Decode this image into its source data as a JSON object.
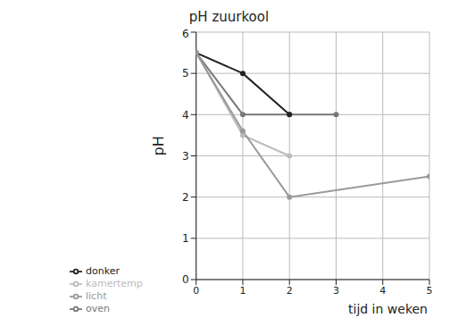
{
  "chart_data": {
    "type": "line",
    "title": "pH zuurkool",
    "x_label": "tijd in weken",
    "y_label": "pH",
    "xlim": [
      0,
      5
    ],
    "xticks": [
      0,
      1,
      2,
      3,
      4,
      5
    ],
    "ylim": [
      0,
      6
    ],
    "yticks": [
      0,
      1,
      2,
      3,
      4,
      5,
      6
    ],
    "grid": true,
    "legend": "bottom-left",
    "marker": "circle",
    "series": [
      {
        "name": "oven",
        "color": "#777777",
        "x": [
          0,
          1,
          2,
          3
        ],
        "values": [
          5.5,
          4,
          4,
          4
        ]
      },
      {
        "name": "donker",
        "color": "#222222",
        "x": [
          0,
          1,
          2
        ],
        "values": [
          5.5,
          5,
          4
        ]
      },
      {
        "name": "kamertemp",
        "color": "#bbbbbb",
        "x": [
          0,
          1,
          2
        ],
        "values": [
          5.5,
          3.5,
          3
        ]
      },
      {
        "name": "licht",
        "color": "#999999",
        "x": [
          0,
          1,
          2,
          5
        ],
        "values": [
          5.5,
          3.6,
          2,
          2.5
        ]
      }
    ]
  }
}
